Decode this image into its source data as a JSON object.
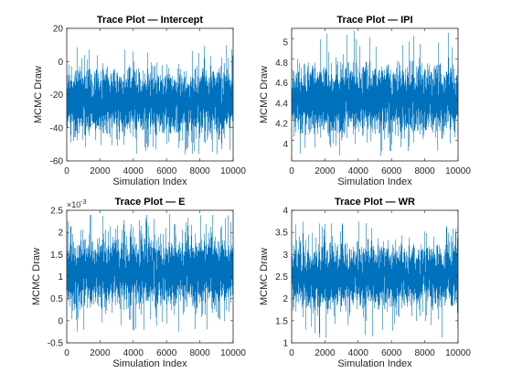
{
  "chart_data": [
    {
      "type": "line",
      "title": "Trace Plot — Intercept",
      "xlabel": "Simulation Index",
      "ylabel": "MCMC Draw",
      "xlim": [
        0,
        10000
      ],
      "ylim": [
        -60,
        20
      ],
      "xticks": [
        "0",
        "2000",
        "4000",
        "6000",
        "8000",
        "10000"
      ],
      "yticks": [
        "-60",
        "-40",
        "-20",
        "0",
        "20"
      ],
      "n_draws": 10000,
      "series": [
        {
          "color": "#0072BD",
          "center": -24,
          "band": [
            -42,
            -6
          ],
          "min": -57,
          "max": 10
        }
      ]
    },
    {
      "type": "line",
      "title": "Trace Plot — IPI",
      "xlabel": "Simulation Index",
      "ylabel": "MCMC Draw",
      "xlim": [
        0,
        10000
      ],
      "ylim": [
        3.8,
        5.1
      ],
      "xticks": [
        "0",
        "2000",
        "4000",
        "6000",
        "8000",
        "10000"
      ],
      "yticks": [
        "4",
        "4.2",
        "4.4",
        "4.6",
        "4.8",
        "5"
      ],
      "n_draws": 10000,
      "series": [
        {
          "color": "#0072BD",
          "center": 4.4,
          "band": [
            4.1,
            4.7
          ],
          "min": 3.85,
          "max": 5.08
        }
      ]
    },
    {
      "type": "line",
      "title": "Trace Plot — E",
      "xlabel": "Simulation Index",
      "ylabel": "MCMC Draw",
      "xlim": [
        0,
        10000
      ],
      "ylim": [
        -0.5,
        2.5
      ],
      "y_multiplier": "×10",
      "y_exponent": "-3",
      "xticks": [
        "0",
        "2000",
        "4000",
        "6000",
        "8000",
        "10000"
      ],
      "yticks": [
        "-0.5",
        "0",
        "0.5",
        "1",
        "1.5",
        "2",
        "2.5"
      ],
      "n_draws": 10000,
      "series": [
        {
          "color": "#0072BD",
          "center": 1.1,
          "band": [
            0.4,
            1.8
          ],
          "min": -0.25,
          "max": 2.45
        }
      ]
    },
    {
      "type": "line",
      "title": "Trace Plot — WR",
      "xlabel": "Simulation Index",
      "ylabel": "MCMC Draw",
      "xlim": [
        0,
        10000
      ],
      "ylim": [
        1,
        4
      ],
      "xticks": [
        "0",
        "2000",
        "4000",
        "6000",
        "8000",
        "10000"
      ],
      "yticks": [
        "1",
        "1.5",
        "2",
        "2.5",
        "3",
        "3.5",
        "4"
      ],
      "n_draws": 10000,
      "series": [
        {
          "color": "#0072BD",
          "center": 2.5,
          "band": [
            1.85,
            3.2
          ],
          "min": 1.1,
          "max": 3.75
        }
      ]
    }
  ]
}
